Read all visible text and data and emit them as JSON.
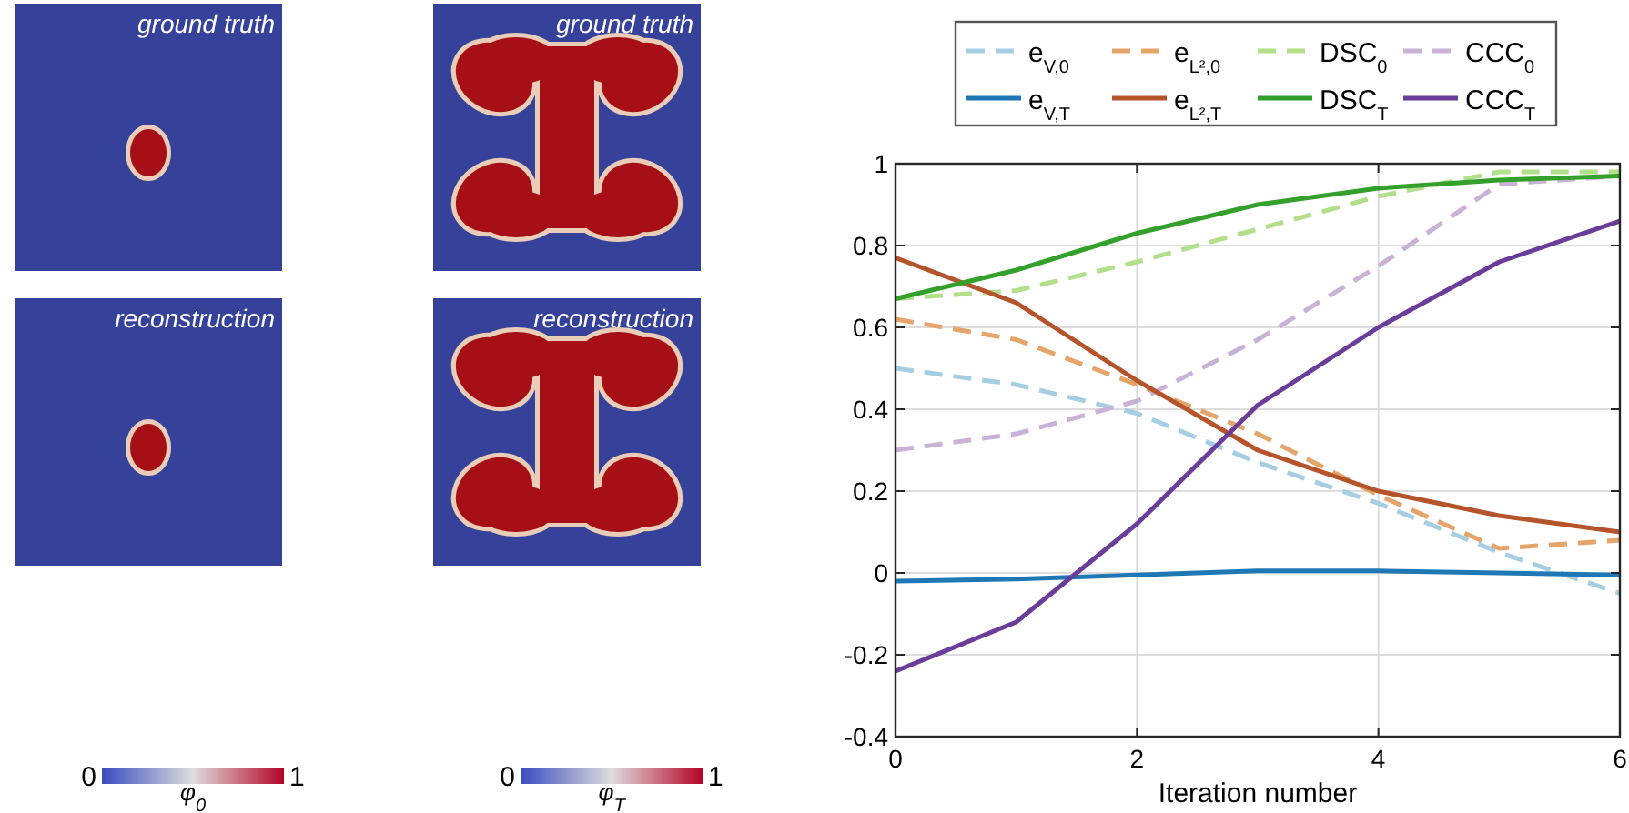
{
  "chart_data": [
    {
      "type": "other",
      "annotations": [
        "ground truth",
        "reconstruction",
        "0",
        "1"
      ],
      "clabel": "φ$_{0}$"
    },
    {
      "type": "other",
      "annotations": [
        "ground truth",
        "reconstruction",
        "0",
        "1"
      ],
      "clabel": "φ$_{T}$"
    },
    {
      "type": "line",
      "xlabel": "Iteration number",
      "x": [
        0,
        1,
        2,
        3,
        4,
        5,
        6
      ],
      "xlim": [
        0,
        6
      ],
      "xticks": [
        0,
        2,
        4,
        6
      ],
      "ylim": [
        -0.4,
        1
      ],
      "yticks": [
        -0.4,
        -0.2,
        0,
        0.2,
        0.4,
        0.6,
        0.8,
        1
      ],
      "grid": true,
      "legend": "top",
      "marker": "none",
      "series": [
        {
          "name": "e$_{V,0}$",
          "color": "#a6cee3",
          "line_style": "dashed",
          "values": [
            0.5,
            0.46,
            0.39,
            0.27,
            0.17,
            0.05,
            -0.05
          ]
        },
        {
          "name": "e$_{L²,0}$",
          "color": "#e5a46a",
          "line_style": "dashed",
          "values": [
            0.62,
            0.57,
            0.46,
            0.34,
            0.19,
            0.06,
            0.08
          ]
        },
        {
          "name": "DSC$_{0}$",
          "color": "#b2df8a",
          "line_style": "dashed",
          "values": [
            0.67,
            0.69,
            0.76,
            0.84,
            0.92,
            0.98,
            0.98
          ]
        },
        {
          "name": "CCC$_{0}$",
          "color": "#cab2d6",
          "line_style": "dashed",
          "values": [
            0.3,
            0.34,
            0.42,
            0.57,
            0.75,
            0.95,
            0.97
          ]
        },
        {
          "name": "e$_{V,T}$",
          "color": "#1f78b4",
          "line_style": "solid",
          "values": [
            -0.02,
            -0.015,
            -0.005,
            0.005,
            0.005,
            0,
            -0.005
          ]
        },
        {
          "name": "e$_{L²,T}$",
          "color": "#b5532a",
          "line_style": "solid",
          "values": [
            0.77,
            0.66,
            0.47,
            0.3,
            0.2,
            0.14,
            0.1
          ]
        },
        {
          "name": "DSC$_{T}$",
          "color": "#33a02c",
          "line_style": "solid",
          "values": [
            0.67,
            0.74,
            0.83,
            0.9,
            0.94,
            0.96,
            0.97
          ]
        },
        {
          "name": "CCC$_{T}$",
          "color": "#6a3d9a",
          "line_style": "solid",
          "values": [
            -0.24,
            -0.12,
            0.12,
            0.41,
            0.6,
            0.76,
            0.86
          ]
        }
      ]
    }
  ]
}
